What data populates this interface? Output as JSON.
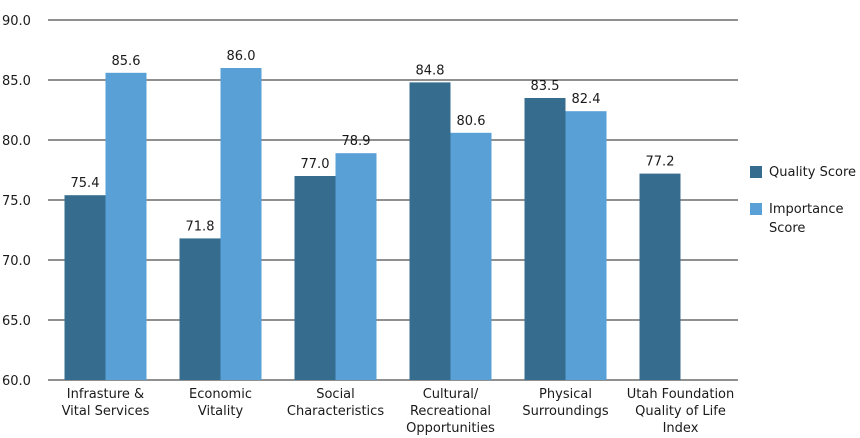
{
  "chart_data": {
    "type": "bar",
    "categories": [
      [
        "Infrasture &",
        "Vital Services"
      ],
      [
        "Economic",
        "Vitality"
      ],
      [
        "Social",
        "Characteristics"
      ],
      [
        "Cultural/",
        "Recreational",
        "Opportunities"
      ],
      [
        "Physical",
        "Surroundings"
      ],
      [
        "Utah Foundation",
        "Quality of Life",
        "Index"
      ]
    ],
    "series": [
      {
        "name": "Quality Score",
        "color": "#366d8f",
        "values": [
          75.4,
          71.8,
          77.0,
          84.8,
          83.5,
          77.2
        ]
      },
      {
        "name": "Importance Score",
        "color": "#58a0d6",
        "values": [
          85.6,
          86.0,
          78.9,
          80.6,
          82.4,
          null
        ]
      }
    ],
    "yticks": [
      "60.0",
      "65.0",
      "70.0",
      "75.0",
      "80.0",
      "85.0",
      "90.0"
    ],
    "ylim": [
      60,
      90
    ],
    "grid": true,
    "legend_position": "right"
  },
  "legend": {
    "items": [
      {
        "label": "Quality Score",
        "color": "#366d8f"
      },
      {
        "label": "Importance Score",
        "color": "#58a0d6"
      }
    ]
  }
}
